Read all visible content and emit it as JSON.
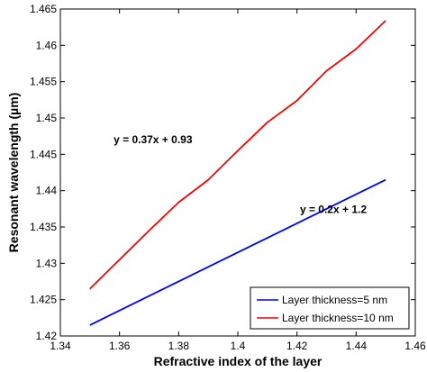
{
  "chart_data": {
    "type": "line",
    "xlabel": "Refractive index of the layer",
    "ylabel": "Resonant wavelength (µm)",
    "xlim": [
      1.34,
      1.46
    ],
    "ylim": [
      1.42,
      1.465
    ],
    "xticks": [
      1.34,
      1.36,
      1.38,
      1.4,
      1.42,
      1.44,
      1.46
    ],
    "xtick_labels": [
      "1.34",
      "1.36",
      "1.38",
      "1.4",
      "1.42",
      "1.44",
      "1.46"
    ],
    "yticks": [
      1.42,
      1.425,
      1.43,
      1.435,
      1.44,
      1.445,
      1.45,
      1.455,
      1.46,
      1.465
    ],
    "ytick_labels": [
      "1.42",
      "1.425",
      "1.43",
      "1.435",
      "1.44",
      "1.445",
      "1.45",
      "1.455",
      "1.46",
      "1.465"
    ],
    "grid": false,
    "legend_position": "bottom-right",
    "series": [
      {
        "name": "Layer thickness=5 nm",
        "color": "#0000ff",
        "x": [
          1.35,
          1.45
        ],
        "y": [
          1.4215,
          1.4415
        ]
      },
      {
        "name": "Layer thickness=10 nm",
        "color": "#ff0000",
        "x": [
          1.35,
          1.36,
          1.37,
          1.38,
          1.39,
          1.4,
          1.41,
          1.42,
          1.43,
          1.44,
          1.45
        ],
        "y": [
          1.4265,
          1.4305,
          1.4345,
          1.4384,
          1.4415,
          1.4455,
          1.4494,
          1.4524,
          1.4565,
          1.4595,
          1.4634
        ]
      }
    ],
    "annotations": [
      {
        "text": "y = 0.37x + 0.93",
        "x": 1.358,
        "y": 1.4465
      },
      {
        "text": "y = 0.2x + 1.2",
        "x": 1.421,
        "y": 1.4369
      }
    ]
  }
}
